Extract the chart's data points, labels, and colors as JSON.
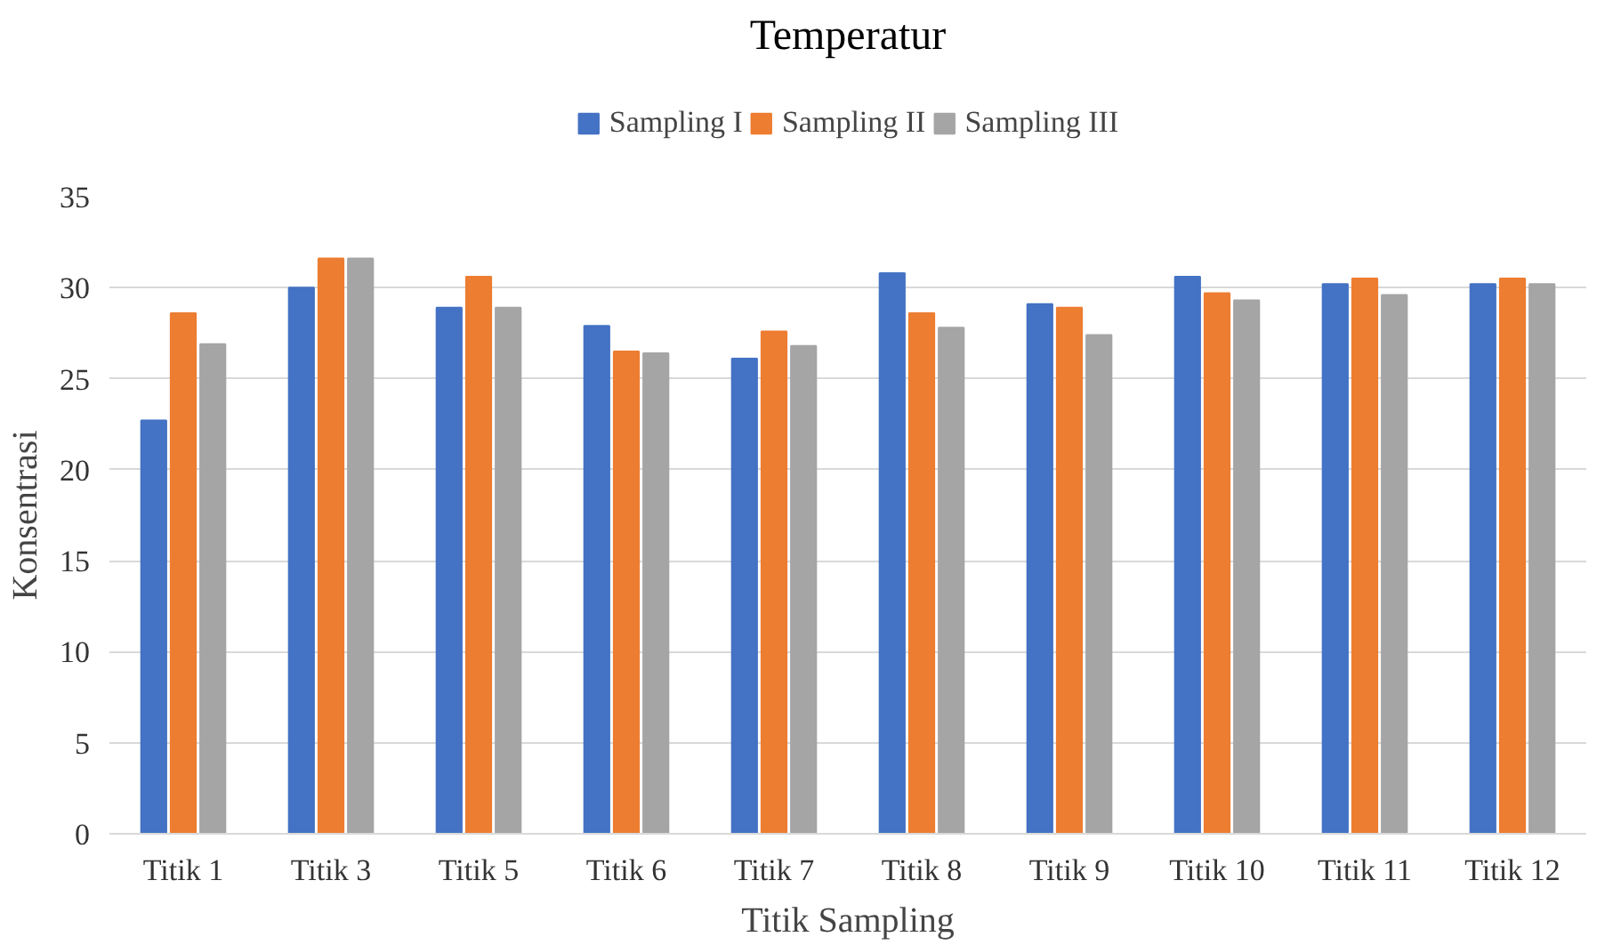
{
  "chart_data": {
    "type": "bar",
    "title": "Temperatur",
    "xlabel": "Titik Sampling",
    "ylabel": "Konsentrasi",
    "categories": [
      "Titik 1",
      "Titik 3",
      "Titik 5",
      "Titik 6",
      "Titik 7",
      "Titik 8",
      "Titik 9",
      "Titik 10",
      "Titik 11",
      "Titik 12"
    ],
    "series": [
      {
        "name": "Sampling I",
        "color": "#4472c4",
        "values": [
          22.7,
          30.0,
          28.9,
          27.9,
          26.1,
          30.8,
          29.1,
          30.6,
          30.2,
          30.2
        ]
      },
      {
        "name": "Sampling II",
        "color": "#ed7d31",
        "values": [
          28.6,
          31.6,
          30.6,
          26.5,
          27.6,
          28.6,
          28.9,
          29.7,
          30.5,
          30.5
        ]
      },
      {
        "name": "Sampling III",
        "color": "#a5a5a5",
        "values": [
          26.9,
          31.6,
          28.9,
          26.4,
          26.8,
          27.8,
          27.4,
          29.3,
          29.6,
          30.2
        ]
      }
    ],
    "ylim": [
      0,
      35
    ],
    "yticks": [
      0,
      5,
      10,
      15,
      20,
      25,
      30,
      35
    ],
    "grid": "y",
    "legend": "top"
  }
}
